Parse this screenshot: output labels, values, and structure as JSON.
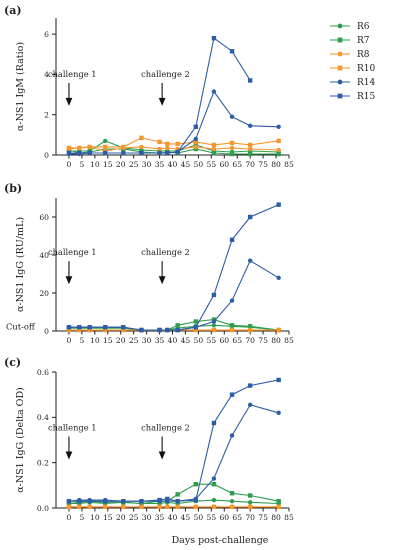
{
  "chart_data": {
    "type": "line",
    "xlabel": "Days post-challenge",
    "x_ticks": [
      0,
      5,
      10,
      15,
      20,
      25,
      30,
      35,
      40,
      45,
      50,
      55,
      60,
      65,
      70,
      75,
      80,
      85
    ],
    "xlim": [
      -5,
      85
    ],
    "legend": {
      "placement": "right",
      "entries": [
        {
          "name": "R6",
          "color": "#2e9e4e",
          "marker": "circle"
        },
        {
          "name": "R7",
          "color": "#2e9e4e",
          "marker": "square"
        },
        {
          "name": "R8",
          "color": "#f5962e",
          "marker": "circle"
        },
        {
          "name": "R10",
          "color": "#f5962e",
          "marker": "square"
        },
        {
          "name": "R14",
          "color": "#2d5da6",
          "marker": "circle"
        },
        {
          "name": "R15",
          "color": "#2d5da6",
          "marker": "square"
        }
      ]
    },
    "panels": [
      {
        "tag": "(a)",
        "ylabel": "α-NS1 IgM (Ratio)",
        "ylim": [
          0,
          6.8
        ],
        "y_ticks": [
          0,
          2,
          4,
          6
        ],
        "annotations": [
          {
            "text": "challenge 1",
            "x": 0
          },
          {
            "text": "challenge 2",
            "x": 36
          }
        ],
        "series": [
          {
            "name": "R6",
            "x": [
              0,
              4,
              8,
              14,
              21,
              28,
              35,
              38,
              42,
              49,
              56,
              63,
              70,
              81
            ],
            "y": [
              0.2,
              0.2,
              0.2,
              0.7,
              0.35,
              0.25,
              0.2,
              0.2,
              0.2,
              0.5,
              0.2,
              0.15,
              0.2,
              0.15
            ]
          },
          {
            "name": "R7",
            "x": [
              0,
              4,
              8,
              14,
              21,
              28,
              35,
              38,
              42,
              49,
              56,
              63,
              70,
              81
            ],
            "y": [
              0.25,
              0.1,
              0.15,
              0.3,
              0.3,
              0.15,
              0.1,
              0.15,
              0.1,
              0.3,
              0.1,
              0.05,
              0.05,
              0.05
            ]
          },
          {
            "name": "R8",
            "x": [
              0,
              4,
              8,
              14,
              21,
              28,
              35,
              38,
              42,
              49,
              56,
              63,
              70,
              81
            ],
            "y": [
              0.3,
              0.35,
              0.4,
              0.2,
              0.35,
              0.4,
              0.3,
              0.35,
              0.3,
              0.4,
              0.3,
              0.35,
              0.3,
              0.25
            ]
          },
          {
            "name": "R10",
            "x": [
              0,
              4,
              8,
              14,
              21,
              28,
              35,
              38,
              42,
              49,
              56,
              63,
              70,
              81
            ],
            "y": [
              0.35,
              0.35,
              0.4,
              0.4,
              0.4,
              0.85,
              0.65,
              0.55,
              0.55,
              0.65,
              0.5,
              0.6,
              0.5,
              0.7
            ]
          },
          {
            "name": "R14",
            "x": [
              0,
              4,
              8,
              14,
              21,
              28,
              35,
              38,
              42,
              49,
              56,
              63,
              70,
              81
            ],
            "y": [
              0.05,
              0.05,
              0.1,
              0.1,
              0.1,
              0.1,
              0.1,
              0.1,
              0.15,
              0.8,
              3.15,
              1.9,
              1.45,
              1.4
            ]
          },
          {
            "name": "R15",
            "x": [
              0,
              4,
              8,
              14,
              21,
              28,
              35,
              38,
              42,
              49,
              56,
              63,
              70
            ],
            "y": [
              0.1,
              0.1,
              0.1,
              0.1,
              0.1,
              0.1,
              0.1,
              0.1,
              0.15,
              1.4,
              5.8,
              5.15,
              3.7
            ]
          }
        ]
      },
      {
        "tag": "(b)",
        "ylabel": "α-NS1 IgG (RU/mL)",
        "ylim": [
          0,
          70
        ],
        "y_ticks": [
          0,
          20,
          40,
          60
        ],
        "cutoff_label": "Cut-off",
        "cutoff_value": 2,
        "annotations": [
          {
            "text": "challenge 1",
            "x": 0
          },
          {
            "text": "challenge 2",
            "x": 36
          }
        ],
        "series": [
          {
            "name": "R6",
            "x": [
              0,
              4,
              8,
              14,
              21,
              28,
              35,
              38,
              42,
              49,
              56,
              63,
              70,
              81
            ],
            "y": [
              1.5,
              1.5,
              1.5,
              1.5,
              1.5,
              0.5,
              0.5,
              0.5,
              1.5,
              2.5,
              3,
              2.5,
              2,
              0.5
            ]
          },
          {
            "name": "R7",
            "x": [
              0,
              4,
              8,
              14,
              21,
              28,
              35,
              38,
              42,
              49,
              56,
              63,
              70,
              81
            ],
            "y": [
              1.5,
              1.5,
              1.5,
              1.5,
              1.5,
              0.5,
              0.5,
              0.5,
              3,
              5,
              6,
              3,
              2.5,
              0.5
            ]
          },
          {
            "name": "R8",
            "x": [
              0,
              4,
              8,
              14,
              21,
              28,
              35,
              38,
              42,
              49,
              56,
              63,
              70,
              81
            ],
            "y": [
              0.5,
              0.5,
              0.5,
              0.5,
              0.5,
              0.5,
              0.5,
              0.5,
              0.5,
              0.5,
              0.5,
              0.5,
              0.5,
              0.5
            ]
          },
          {
            "name": "R10",
            "x": [
              0,
              4,
              8,
              14,
              21,
              28,
              35,
              38,
              42,
              49,
              56,
              63,
              70,
              81
            ],
            "y": [
              0.5,
              0.5,
              0.5,
              0.5,
              0.5,
              0.5,
              0.5,
              0.5,
              0.5,
              0.5,
              0.5,
              0.5,
              0.5,
              0.5
            ]
          },
          {
            "name": "R14",
            "x": [
              0,
              4,
              8,
              14,
              21,
              28,
              35,
              38,
              42,
              49,
              56,
              63,
              70,
              81
            ],
            "y": [
              2,
              2,
              2,
              2,
              2,
              0.5,
              0.5,
              0.5,
              0.5,
              2,
              5,
              16,
              37,
              28
            ]
          },
          {
            "name": "R15",
            "x": [
              0,
              4,
              8,
              14,
              21,
              28,
              35,
              38,
              42,
              49,
              56,
              63,
              70,
              81
            ],
            "y": [
              2,
              2,
              2,
              2,
              2,
              0.5,
              0.5,
              0.5,
              0.5,
              2,
              19,
              48,
              60,
              66.5
            ]
          }
        ]
      },
      {
        "tag": "(c)",
        "ylabel": "α-NS1 IgG (Delta OD)",
        "ylim": [
          0,
          0.6
        ],
        "y_ticks": [
          0.0,
          0.2,
          0.4,
          0.6
        ],
        "y_tick_labels": [
          "0.0",
          "0.2",
          "0.4",
          "0.6"
        ],
        "annotations": [
          {
            "text": "challenge 1",
            "x": 0
          },
          {
            "text": "challenge 2",
            "x": 36
          }
        ],
        "series": [
          {
            "name": "R6",
            "x": [
              0,
              4,
              8,
              14,
              21,
              28,
              35,
              38,
              42,
              49,
              56,
              63,
              70,
              81
            ],
            "y": [
              0.02,
              0.02,
              0.025,
              0.02,
              0.025,
              0.02,
              0.02,
              0.025,
              0.02,
              0.03,
              0.035,
              0.03,
              0.025,
              0.02
            ]
          },
          {
            "name": "R7",
            "x": [
              0,
              4,
              8,
              14,
              21,
              28,
              35,
              38,
              42,
              49,
              56,
              63,
              70,
              81
            ],
            "y": [
              0.02,
              0.025,
              0.03,
              0.025,
              0.025,
              0.02,
              0.03,
              0.03,
              0.06,
              0.105,
              0.105,
              0.065,
              0.055,
              0.03
            ]
          },
          {
            "name": "R8",
            "x": [
              0,
              4,
              8,
              14,
              21,
              28,
              35,
              38,
              42,
              49,
              56,
              63,
              70,
              81
            ],
            "y": [
              0.005,
              0.005,
              0.005,
              0.005,
              0.005,
              0.005,
              0.005,
              0.005,
              0.005,
              0.005,
              0.005,
              0.005,
              0.005,
              0.005
            ]
          },
          {
            "name": "R10",
            "x": [
              0,
              4,
              8,
              14,
              21,
              28,
              35,
              38,
              42,
              49,
              56,
              63,
              70,
              81
            ],
            "y": [
              0.005,
              0.005,
              0.005,
              0.005,
              0.005,
              0.005,
              0.005,
              0.005,
              0.005,
              0.005,
              0.005,
              0.005,
              0.005,
              0.005
            ]
          },
          {
            "name": "R14",
            "x": [
              0,
              4,
              8,
              14,
              21,
              28,
              35,
              38,
              42,
              49,
              56,
              63,
              70,
              81
            ],
            "y": [
              0.03,
              0.035,
              0.035,
              0.035,
              0.03,
              0.03,
              0.03,
              0.03,
              0.03,
              0.04,
              0.13,
              0.32,
              0.455,
              0.42
            ]
          },
          {
            "name": "R15",
            "x": [
              0,
              4,
              8,
              14,
              21,
              28,
              35,
              38,
              42,
              49,
              56,
              63,
              70,
              81
            ],
            "y": [
              0.03,
              0.03,
              0.03,
              0.03,
              0.03,
              0.03,
              0.035,
              0.04,
              0.03,
              0.035,
              0.375,
              0.5,
              0.54,
              0.565
            ]
          }
        ]
      }
    ]
  }
}
